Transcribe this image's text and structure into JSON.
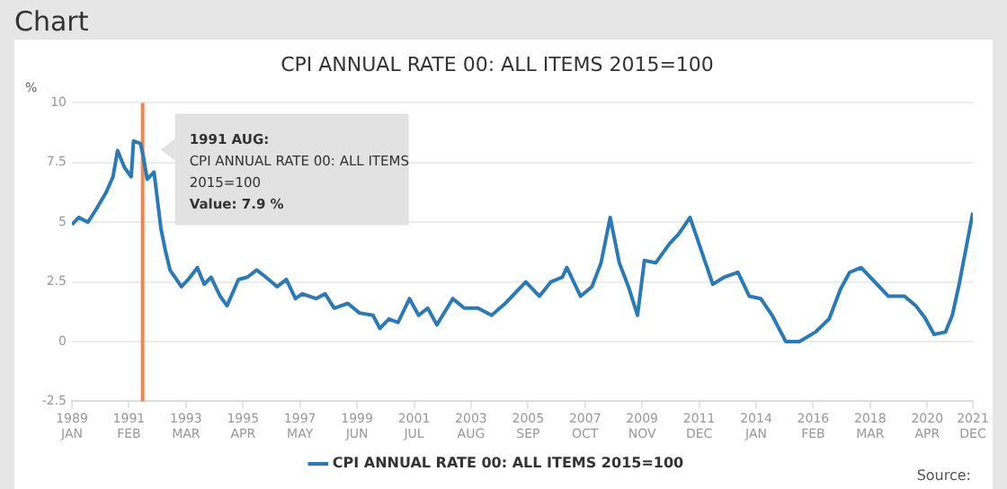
{
  "chart_data": {
    "type": "line",
    "title": "CPI ANNUAL RATE 00: ALL ITEMS 2015=100",
    "ylabel": "%",
    "x": [
      "1989-01",
      "1989-04",
      "1989-08",
      "1989-12",
      "1990-04",
      "1990-07",
      "1990-09",
      "1990-12",
      "1991-03",
      "1991-04",
      "1991-07",
      "1991-08",
      "1991-10",
      "1992-01",
      "1992-04",
      "1992-06",
      "1992-08",
      "1993-01",
      "1993-04",
      "1993-08",
      "1993-11",
      "1994-02",
      "1994-06",
      "1994-09",
      "1995-02",
      "1995-06",
      "1995-10",
      "1996-02",
      "1996-07",
      "1996-11",
      "1997-03",
      "1997-06",
      "1997-12",
      "1998-04",
      "1998-08",
      "1999-02",
      "1999-07",
      "2000-01",
      "2000-04",
      "2000-08",
      "2000-12",
      "2001-05",
      "2001-09",
      "2002-01",
      "2002-05",
      "2002-12",
      "2003-05",
      "2003-11",
      "2004-05",
      "2004-11",
      "2005-08",
      "2006-02",
      "2006-07",
      "2006-12",
      "2007-02",
      "2007-08",
      "2008-01",
      "2008-05",
      "2008-09",
      "2009-01",
      "2009-05",
      "2009-09",
      "2009-12",
      "2010-05",
      "2010-11",
      "2011-03",
      "2011-08",
      "2012-01",
      "2012-06",
      "2012-11",
      "2013-05",
      "2013-10",
      "2014-03",
      "2014-08",
      "2015-02",
      "2015-08",
      "2016-03",
      "2016-09",
      "2017-02",
      "2017-06",
      "2017-11",
      "2018-06",
      "2018-11",
      "2019-06",
      "2019-11",
      "2020-03",
      "2020-07",
      "2020-12",
      "2021-03",
      "2021-06",
      "2021-08",
      "2021-12"
    ],
    "series": [
      {
        "name": "CPI ANNUAL RATE 00: ALL ITEMS 2015=100",
        "color": "#2a7ab8",
        "values": [
          4.9,
          5.2,
          5.0,
          5.6,
          6.25,
          6.9,
          8.0,
          7.3,
          6.9,
          8.4,
          8.3,
          7.9,
          6.8,
          7.1,
          4.75,
          3.8,
          3.0,
          2.3,
          2.6,
          3.1,
          2.4,
          2.7,
          1.9,
          1.5,
          2.6,
          2.7,
          3.0,
          2.7,
          2.3,
          2.6,
          1.8,
          2.0,
          1.8,
          2.0,
          1.4,
          1.6,
          1.2,
          1.1,
          0.55,
          0.95,
          0.8,
          1.8,
          1.1,
          1.4,
          0.7,
          1.8,
          1.4,
          1.4,
          1.1,
          1.6,
          2.5,
          1.9,
          2.5,
          2.7,
          3.1,
          1.9,
          2.3,
          3.3,
          5.2,
          3.3,
          2.3,
          1.1,
          3.4,
          3.3,
          4.1,
          4.5,
          5.2,
          3.8,
          2.4,
          2.7,
          2.9,
          1.9,
          1.8,
          1.1,
          0.0,
          0.0,
          0.4,
          0.95,
          2.2,
          2.9,
          3.1,
          2.4,
          1.9,
          1.9,
          1.5,
          1.0,
          0.3,
          0.4,
          1.1,
          2.4,
          3.4,
          5.4
        ]
      }
    ],
    "xlim": [
      "1989-01",
      "2021-12"
    ],
    "xticks": [
      {
        "value": "1989-01",
        "label": "1989 JAN"
      },
      {
        "value": "1991-02",
        "label": "1991 FEB"
      },
      {
        "value": "1993-03",
        "label": "1993 MAR"
      },
      {
        "value": "1995-04",
        "label": "1995 APR"
      },
      {
        "value": "1997-05",
        "label": "1997 MAY"
      },
      {
        "value": "1999-06",
        "label": "1999 JUN"
      },
      {
        "value": "2001-07",
        "label": "2001 JUL"
      },
      {
        "value": "2003-08",
        "label": "2003 AUG"
      },
      {
        "value": "2005-09",
        "label": "2005 SEP"
      },
      {
        "value": "2007-10",
        "label": "2007 OCT"
      },
      {
        "value": "2009-11",
        "label": "2009 NOV"
      },
      {
        "value": "2011-12",
        "label": "2011 DEC"
      },
      {
        "value": "2014-01",
        "label": "2014 JAN"
      },
      {
        "value": "2016-02",
        "label": "2016 FEB"
      },
      {
        "value": "2018-03",
        "label": "2018 MAR"
      },
      {
        "value": "2020-04",
        "label": "2020 APR"
      },
      {
        "value": "2021-12",
        "label": "2021 DEC"
      }
    ],
    "ylim": [
      -2.5,
      10
    ],
    "yticks": [
      -2.5,
      0,
      2.5,
      5,
      7.5,
      10
    ],
    "grid": "y",
    "legend": "bottom",
    "marker": "none",
    "line_style": "solid",
    "ref_lines": [
      {
        "axis": "x",
        "value": "1991-08",
        "color": "#f0874a"
      }
    ],
    "annotations": [
      "Chart",
      "Source:",
      "1991 AUG:\nCPI ANNUAL RATE 00: ALL ITEMS\n2015=100\nValue: 7.9 %"
    ]
  }
}
